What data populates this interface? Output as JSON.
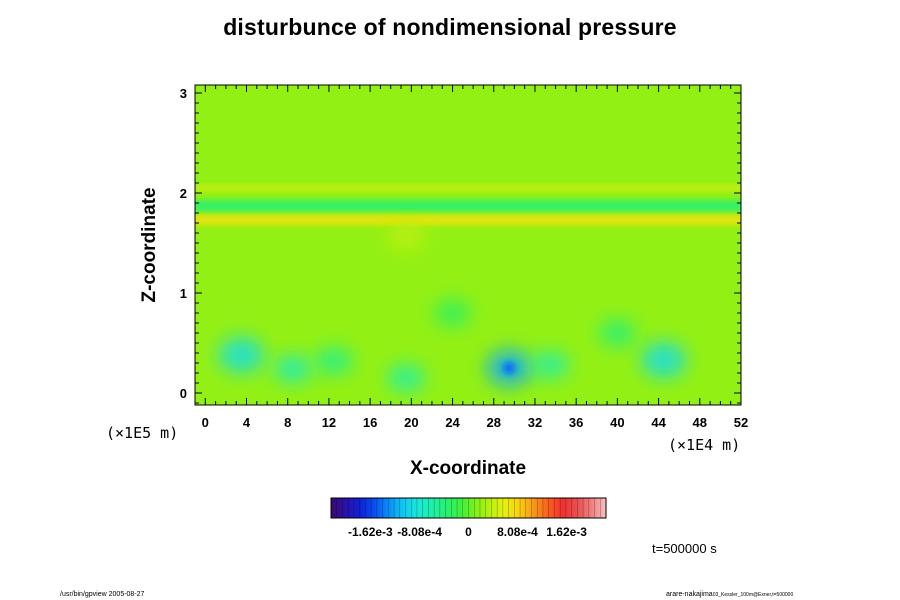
{
  "chart_data": {
    "type": "heatmap",
    "title": "disturbunce of nondimensional pressure",
    "xlabel": "X-coordinate",
    "ylabel": "Z-coordinate",
    "x_scale_label": "(×1E5 m)",
    "y_scale_label": "(×1E4 m)",
    "xlim": [
      -1,
      52
    ],
    "ylim": [
      -0.12,
      3.08
    ],
    "x_ticks": [
      "0",
      "4",
      "8",
      "12",
      "16",
      "20",
      "24",
      "28",
      "32",
      "36",
      "40",
      "44",
      "48",
      "52"
    ],
    "y_ticks": [
      "0",
      "1",
      "2",
      "3"
    ],
    "colorbar": {
      "ticks": [
        "-1.62e-3",
        "-8.08e-4",
        "0",
        "8.08e-4",
        "1.62e-3"
      ],
      "range": [
        -0.00227,
        0.00227
      ],
      "colors": [
        "#3a0a6b",
        "#2a12a8",
        "#1020d8",
        "#0a50f0",
        "#0890f8",
        "#10c8f0",
        "#18e8d8",
        "#20f0a8",
        "#28f070",
        "#40f040",
        "#80f018",
        "#b8f010",
        "#e8f010",
        "#f8d010",
        "#f89818",
        "#f86020",
        "#f03030",
        "#e85050",
        "#f08080",
        "#f8c0c0"
      ]
    },
    "background_value": 0.0002,
    "bands": [
      {
        "z_center": 2.05,
        "half_width": 0.03,
        "value": 0.00045
      },
      {
        "z_center": 1.87,
        "half_width": 0.06,
        "value": -0.00035
      },
      {
        "z_center": 1.73,
        "half_width": 0.05,
        "value": 0.0007
      }
    ],
    "anomalies": [
      {
        "x": 3.5,
        "z": 0.38,
        "value": -0.0009
      },
      {
        "x": 8.5,
        "z": 0.24,
        "value": -0.0007
      },
      {
        "x": 12.5,
        "z": 0.32,
        "value": -0.0005
      },
      {
        "x": 19.5,
        "z": 0.15,
        "value": -0.0006
      },
      {
        "x": 29.5,
        "z": 0.25,
        "value": -0.0012
      },
      {
        "x": 33.5,
        "z": 0.28,
        "value": -0.0006
      },
      {
        "x": 44.5,
        "z": 0.33,
        "value": -0.0009
      },
      {
        "x": 40.0,
        "z": 0.6,
        "value": -0.0004
      },
      {
        "x": 24.0,
        "z": 0.8,
        "value": -0.0003
      },
      {
        "x": 19.5,
        "z": 1.57,
        "value": 0.0004
      }
    ]
  },
  "time_label": "t=500000 s",
  "footer": {
    "left": "/usr/bin/gpview 2005-08-27",
    "right_main": "arare-nakajima",
    "right_sub": "03_Kessler_100m@Exner,t=500000"
  }
}
